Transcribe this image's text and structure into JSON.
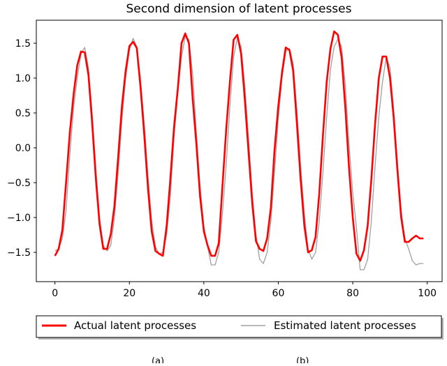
{
  "chart_data": {
    "type": "line",
    "title": "Second dimension of latent processes",
    "xlabel": "",
    "ylabel": "",
    "xlim": [
      -5,
      104
    ],
    "ylim": [
      -1.92,
      1.83
    ],
    "x_ticks": [
      0,
      20,
      40,
      60,
      80,
      100
    ],
    "y_ticks": [
      -1.5,
      -1.0,
      -0.5,
      0.0,
      0.5,
      1.0,
      1.5
    ],
    "x_tick_labels": [
      "0",
      "20",
      "40",
      "60",
      "80",
      "100"
    ],
    "y_tick_labels": [
      "−1.5",
      "−1.0",
      "−0.5",
      "0.0",
      "0.5",
      "1.0",
      "1.5"
    ],
    "grid": false,
    "legend_position": "bottom, outside the axes",
    "series": [
      {
        "name": "Actual latent processes",
        "color": "#ff0000",
        "x": [
          0,
          1,
          2,
          3,
          4,
          5,
          6,
          7,
          8,
          9,
          10,
          11,
          12,
          13,
          14,
          15,
          16,
          17,
          18,
          19,
          20,
          21,
          22,
          23,
          24,
          25,
          26,
          27,
          28,
          29,
          30,
          31,
          32,
          33,
          34,
          35,
          36,
          37,
          38,
          39,
          40,
          41,
          42,
          43,
          44,
          45,
          46,
          47,
          48,
          49,
          50,
          51,
          52,
          53,
          54,
          55,
          56,
          57,
          58,
          59,
          60,
          61,
          62,
          63,
          64,
          65,
          66,
          67,
          68,
          69,
          70,
          71,
          72,
          73,
          74,
          75,
          76,
          77,
          78,
          79,
          80,
          81,
          82,
          83,
          84,
          85,
          86,
          87,
          88,
          89,
          90,
          91,
          92,
          93,
          94,
          95,
          96,
          97,
          98,
          99
        ],
        "values": [
          -1.55,
          -1.45,
          -1.18,
          -0.5,
          0.22,
          0.76,
          1.18,
          1.38,
          1.37,
          1.05,
          0.35,
          -0.45,
          -1.1,
          -1.45,
          -1.45,
          -1.24,
          -0.83,
          -0.12,
          0.6,
          1.1,
          1.46,
          1.52,
          1.43,
          0.87,
          0.18,
          -0.58,
          -1.2,
          -1.48,
          -1.52,
          -1.55,
          -1.12,
          -0.45,
          0.3,
          0.85,
          1.5,
          1.64,
          1.5,
          0.7,
          0.05,
          -0.7,
          -1.2,
          -1.4,
          -1.55,
          -1.55,
          -1.37,
          -0.55,
          0.25,
          0.95,
          1.55,
          1.62,
          1.35,
          0.7,
          -0.05,
          -0.8,
          -1.34,
          -1.45,
          -1.48,
          -1.3,
          -0.86,
          -0.03,
          0.6,
          1.08,
          1.44,
          1.4,
          1.1,
          0.35,
          -0.45,
          -1.12,
          -1.5,
          -1.47,
          -1.28,
          -0.66,
          0.18,
          0.95,
          1.42,
          1.67,
          1.62,
          1.3,
          0.58,
          -0.28,
          -1.0,
          -1.52,
          -1.62,
          -1.47,
          -1.12,
          -0.45,
          0.35,
          1.0,
          1.31,
          1.31,
          1.0,
          0.43,
          -0.32,
          -1.0,
          -1.35,
          -1.35,
          -1.3,
          -1.26,
          -1.3,
          -1.3
        ]
      },
      {
        "name": "Estimated latent processes",
        "color": "#a0a0a0",
        "x": [
          0,
          1,
          2,
          3,
          4,
          5,
          6,
          7,
          8,
          9,
          10,
          11,
          12,
          13,
          14,
          15,
          16,
          17,
          18,
          19,
          20,
          21,
          22,
          23,
          24,
          25,
          26,
          27,
          28,
          29,
          30,
          31,
          32,
          33,
          34,
          35,
          36,
          37,
          38,
          39,
          40,
          41,
          42,
          43,
          44,
          45,
          46,
          47,
          48,
          49,
          50,
          51,
          52,
          53,
          54,
          55,
          56,
          57,
          58,
          59,
          60,
          61,
          62,
          63,
          64,
          65,
          66,
          67,
          68,
          69,
          70,
          71,
          72,
          73,
          74,
          75,
          76,
          77,
          78,
          79,
          80,
          81,
          82,
          83,
          84,
          85,
          86,
          87,
          88,
          89,
          90,
          91,
          92,
          93,
          94,
          95,
          96,
          97,
          98,
          99
        ],
        "values": [
          -1.48,
          -1.45,
          -1.3,
          -0.9,
          -0.1,
          0.57,
          1.0,
          1.35,
          1.44,
          1.15,
          0.5,
          -0.3,
          -1.0,
          -1.4,
          -1.48,
          -1.4,
          -1.0,
          -0.35,
          0.4,
          1.0,
          1.4,
          1.57,
          1.45,
          0.98,
          0.35,
          -0.4,
          -1.05,
          -1.42,
          -1.52,
          -1.5,
          -1.25,
          -0.7,
          0.15,
          0.78,
          1.3,
          1.6,
          1.55,
          1.05,
          0.22,
          -0.55,
          -1.12,
          -1.42,
          -1.68,
          -1.68,
          -1.5,
          -0.95,
          -0.25,
          0.6,
          1.3,
          1.58,
          1.45,
          0.9,
          0.15,
          -0.65,
          -1.25,
          -1.6,
          -1.66,
          -1.5,
          -1.05,
          -0.35,
          0.42,
          1.0,
          1.38,
          1.43,
          1.2,
          0.55,
          -0.25,
          -0.95,
          -1.45,
          -1.6,
          -1.5,
          -1.05,
          -0.35,
          0.45,
          1.12,
          1.45,
          1.56,
          1.45,
          0.9,
          0.05,
          -0.65,
          -1.15,
          -1.75,
          -1.75,
          -1.6,
          -1.05,
          -0.25,
          0.45,
          0.95,
          1.3,
          1.15,
          0.55,
          -0.2,
          -0.9,
          -1.3,
          -1.45,
          -1.62,
          -1.68,
          -1.66,
          -1.66
        ]
      }
    ]
  }
}
